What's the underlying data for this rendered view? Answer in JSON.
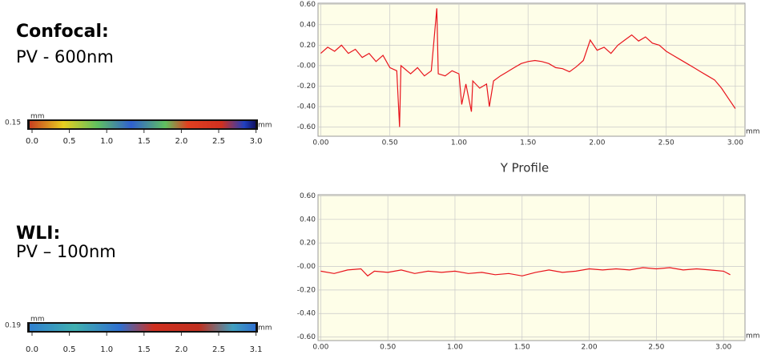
{
  "panels": [
    {
      "heading": "Confocal:",
      "subheading": "PV - 600nm",
      "strip": {
        "label": "0.15",
        "unit_top": "mm",
        "unit_right": "mm",
        "ticks": [
          "0.0",
          "0.5",
          "1.0",
          "1.5",
          "2.0",
          "2.5",
          "3.0"
        ]
      }
    },
    {
      "heading": "WLI:",
      "subheading": "PV – 100nm",
      "strip": {
        "label": "0.19",
        "unit_top": "mm",
        "unit_right": "mm",
        "ticks": [
          "0.0",
          "0.5",
          "1.0",
          "1.5",
          "2.0",
          "2.5",
          "3.1"
        ]
      }
    }
  ],
  "caption": "Y Profile",
  "chart_data": [
    {
      "type": "line",
      "x_unit": "mm",
      "color": "#e8141c",
      "grid": true,
      "xlim": [
        -0.02,
        3.07
      ],
      "ylim": [
        -0.69,
        0.61
      ],
      "xticks": [
        {
          "value": 0,
          "label": "0.00"
        },
        {
          "value": 0.5,
          "label": "0.50"
        },
        {
          "value": 1,
          "label": "1.00"
        },
        {
          "value": 1.5,
          "label": "1.50"
        },
        {
          "value": 2,
          "label": "2.00"
        },
        {
          "value": 2.5,
          "label": "2.50"
        },
        {
          "value": 3,
          "label": "3.00"
        }
      ],
      "yticks": [
        {
          "value": 0.6,
          "label": "0.60"
        },
        {
          "value": 0.4,
          "label": "0.40"
        },
        {
          "value": 0.2,
          "label": "0.20"
        },
        {
          "value": 0,
          "label": "-0.00"
        },
        {
          "value": -0.2,
          "label": "-0.20"
        },
        {
          "value": -0.4,
          "label": "-0.40"
        },
        {
          "value": -0.6,
          "label": "-0.60"
        }
      ],
      "x": [
        0,
        0.05,
        0.1,
        0.15,
        0.2,
        0.25,
        0.3,
        0.35,
        0.4,
        0.45,
        0.5,
        0.55,
        0.57,
        0.58,
        0.65,
        0.7,
        0.75,
        0.8,
        0.84,
        0.85,
        0.9,
        0.95,
        1,
        1.02,
        1.05,
        1.09,
        1.1,
        1.15,
        1.2,
        1.22,
        1.25,
        1.3,
        1.35,
        1.4,
        1.45,
        1.5,
        1.55,
        1.6,
        1.65,
        1.7,
        1.75,
        1.8,
        1.85,
        1.9,
        1.95,
        2,
        2.05,
        2.1,
        2.15,
        2.2,
        2.25,
        2.3,
        2.35,
        2.4,
        2.45,
        2.5,
        2.55,
        2.6,
        2.65,
        2.7,
        2.75,
        2.8,
        2.85,
        2.9,
        2.95,
        3
      ],
      "values": [
        0.12,
        0.18,
        0.14,
        0.2,
        0.12,
        0.16,
        0.08,
        0.12,
        0.04,
        0.1,
        -0.02,
        -0.05,
        -0.6,
        0,
        -0.08,
        -0.02,
        -0.1,
        -0.05,
        0.56,
        -0.08,
        -0.1,
        -0.05,
        -0.08,
        -0.38,
        -0.18,
        -0.45,
        -0.15,
        -0.22,
        -0.18,
        -0.4,
        -0.15,
        -0.1,
        -0.06,
        -0.02,
        0.02,
        0.04,
        0.05,
        0.04,
        0.02,
        -0.02,
        -0.03,
        -0.06,
        -0.01,
        0.05,
        0.25,
        0.15,
        0.18,
        0.12,
        0.2,
        0.25,
        0.3,
        0.24,
        0.28,
        0.22,
        0.2,
        0.14,
        0.1,
        0.06,
        0.02,
        -0.02,
        -0.06,
        -0.1,
        -0.14,
        -0.22,
        -0.32,
        -0.42
      ]
    },
    {
      "type": "line",
      "x_unit": "mm",
      "color": "#e8141c",
      "grid": true,
      "xlim": [
        -0.02,
        3.16
      ],
      "ylim": [
        -0.63,
        0.61
      ],
      "xticks": [
        {
          "value": 0,
          "label": "0.00"
        },
        {
          "value": 0.5,
          "label": "0.50"
        },
        {
          "value": 1,
          "label": "1.00"
        },
        {
          "value": 1.5,
          "label": "1.50"
        },
        {
          "value": 2,
          "label": "2.00"
        },
        {
          "value": 2.5,
          "label": "2.50"
        },
        {
          "value": 3,
          "label": "3.00"
        }
      ],
      "yticks": [
        {
          "value": 0.6,
          "label": "0.60"
        },
        {
          "value": 0.4,
          "label": "0.40"
        },
        {
          "value": 0.2,
          "label": "0.20"
        },
        {
          "value": 0,
          "label": "-0.00"
        },
        {
          "value": -0.2,
          "label": "-0.20"
        },
        {
          "value": -0.4,
          "label": "-0.40"
        },
        {
          "value": -0.6,
          "label": "-0.60"
        }
      ],
      "x": [
        0,
        0.1,
        0.2,
        0.3,
        0.35,
        0.4,
        0.5,
        0.6,
        0.7,
        0.8,
        0.9,
        1,
        1.1,
        1.2,
        1.3,
        1.4,
        1.5,
        1.6,
        1.7,
        1.8,
        1.9,
        2,
        2.1,
        2.2,
        2.3,
        2.4,
        2.5,
        2.6,
        2.7,
        2.8,
        2.9,
        3,
        3.05
      ],
      "values": [
        -0.04,
        -0.06,
        -0.03,
        -0.02,
        -0.08,
        -0.04,
        -0.05,
        -0.03,
        -0.06,
        -0.04,
        -0.05,
        -0.04,
        -0.06,
        -0.05,
        -0.07,
        -0.06,
        -0.08,
        -0.05,
        -0.03,
        -0.05,
        -0.04,
        -0.02,
        -0.03,
        -0.02,
        -0.03,
        -0.01,
        -0.02,
        -0.01,
        -0.03,
        -0.02,
        -0.03,
        -0.04,
        -0.07
      ]
    }
  ]
}
